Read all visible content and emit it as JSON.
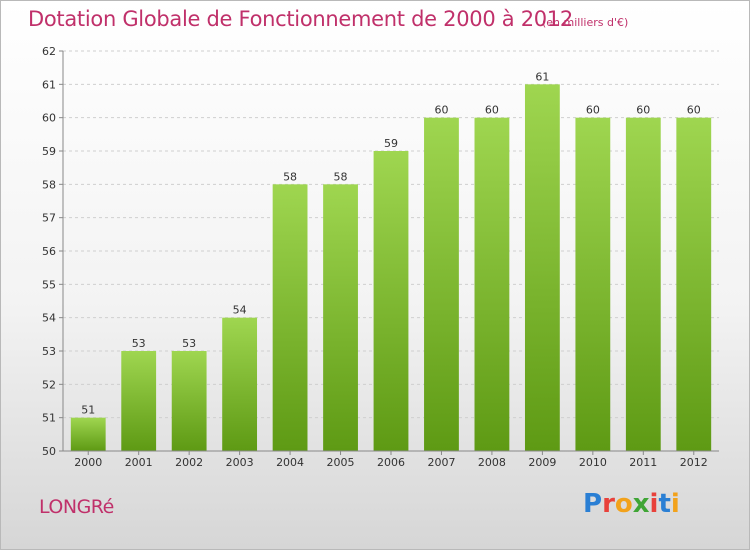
{
  "header": {
    "title": "Dotation Globale de Fonctionnement de 2000 à 2012",
    "subtitle": "(en milliers d'€)"
  },
  "footer": {
    "place": "LONGRé",
    "logo": "Proxiti",
    "logo_colors": [
      "#2a7fd4",
      "#e8413b",
      "#f2a21b",
      "#3fa535",
      "#e8413b",
      "#2a7fd4",
      "#f2a21b"
    ]
  },
  "colors": {
    "title": "#c0306a",
    "bar_light": "#9fd650",
    "bar_dark": "#5e9a14"
  },
  "chart_data": {
    "type": "bar",
    "categories": [
      "2000",
      "2001",
      "2002",
      "2003",
      "2004",
      "2005",
      "2006",
      "2007",
      "2008",
      "2009",
      "2010",
      "2011",
      "2012"
    ],
    "values": [
      51,
      53,
      53,
      54,
      58,
      58,
      59,
      60,
      60,
      61,
      60,
      60,
      60
    ],
    "ylim": [
      50,
      62
    ],
    "yticks": [
      50,
      51,
      52,
      53,
      54,
      55,
      56,
      57,
      58,
      59,
      60,
      61,
      62
    ],
    "grid": true
  }
}
